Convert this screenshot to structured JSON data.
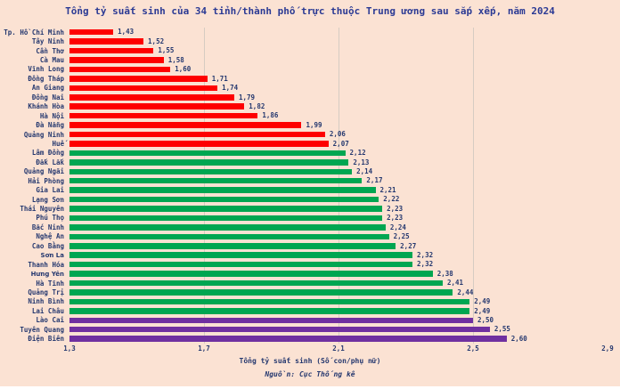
{
  "chart_data": {
    "type": "bar",
    "orientation": "horizontal",
    "title": "Tổng tỷ suất sinh của 34 tỉnh/thành phố trực thuộc Trung ương sau sắp xếp, năm 2024",
    "xlabel": "Tổng tỷ suất sinh (Số con/phụ nữ)",
    "source": "Nguồn: Cục Thống kê",
    "xlim": [
      1.3,
      2.9
    ],
    "xticks": [
      1.3,
      1.7,
      2.1,
      2.5,
      2.9
    ],
    "xtick_labels": [
      "1,3",
      "1,7",
      "2,1",
      "2,5",
      "2,9"
    ],
    "gridlines_at": [
      1.7,
      2.1,
      2.5
    ],
    "grid": "vertical, light gray, behind bars",
    "legend": "none",
    "colors": {
      "red": "#fe0000",
      "green": "#00a651",
      "purple": "#7030a0"
    },
    "background_color": "#fbe2d3",
    "text_color": "#25386f",
    "bars": [
      {
        "label": "Tp. Hồ Chí Minh",
        "value": 1.43,
        "display": "1,43",
        "color": "red"
      },
      {
        "label": "Tây Ninh",
        "value": 1.52,
        "display": "1,52",
        "color": "red"
      },
      {
        "label": "Cần Thơ",
        "value": 1.55,
        "display": "1,55",
        "color": "red"
      },
      {
        "label": "Cà Mau",
        "value": 1.58,
        "display": "1,58",
        "color": "red"
      },
      {
        "label": "Vĩnh Long",
        "value": 1.6,
        "display": "1,60",
        "color": "red"
      },
      {
        "label": "Đồng Tháp",
        "value": 1.71,
        "display": "1,71",
        "color": "red"
      },
      {
        "label": "An Giang",
        "value": 1.74,
        "display": "1,74",
        "color": "red"
      },
      {
        "label": "Đồng Nai",
        "value": 1.79,
        "display": "1,79",
        "color": "red"
      },
      {
        "label": "Khánh Hòa",
        "value": 1.82,
        "display": "1,82",
        "color": "red"
      },
      {
        "label": "Hà Nội",
        "value": 1.86,
        "display": "1,86",
        "color": "red"
      },
      {
        "label": "Đà Nẵng",
        "value": 1.99,
        "display": "1,99",
        "color": "red"
      },
      {
        "label": "Quảng Ninh",
        "value": 2.06,
        "display": "2,06",
        "color": "red"
      },
      {
        "label": "Huế",
        "value": 2.07,
        "display": "2,07",
        "color": "red"
      },
      {
        "label": "Lâm Đồng",
        "value": 2.12,
        "display": "2,12",
        "color": "green"
      },
      {
        "label": "Đắk Lắk",
        "value": 2.13,
        "display": "2,13",
        "color": "green"
      },
      {
        "label": "Quảng Ngãi",
        "value": 2.14,
        "display": "2,14",
        "color": "green"
      },
      {
        "label": "Hải Phòng",
        "value": 2.17,
        "display": "2,17",
        "color": "green"
      },
      {
        "label": "Gia Lai",
        "value": 2.21,
        "display": "2,21",
        "color": "green"
      },
      {
        "label": "Lạng Sơn",
        "value": 2.22,
        "display": "2,22",
        "color": "green"
      },
      {
        "label": "Thái Nguyên",
        "value": 2.23,
        "display": "2,23",
        "color": "green"
      },
      {
        "label": "Phú Thọ",
        "value": 2.23,
        "display": "2,23",
        "color": "green"
      },
      {
        "label": "Bắc Ninh",
        "value": 2.24,
        "display": "2,24",
        "color": "green"
      },
      {
        "label": "Nghệ An",
        "value": 2.25,
        "display": "2,25",
        "color": "green"
      },
      {
        "label": "Cao Bằng",
        "value": 2.27,
        "display": "2,27",
        "color": "green"
      },
      {
        "label": "Sơn La",
        "value": 2.32,
        "display": "2,32",
        "color": "green"
      },
      {
        "label": "Thanh Hóa",
        "value": 2.32,
        "display": "2,32",
        "color": "green"
      },
      {
        "label": "Hưng Yên",
        "value": 2.38,
        "display": "2,38",
        "color": "green"
      },
      {
        "label": "Hà Tĩnh",
        "value": 2.41,
        "display": "2,41",
        "color": "green"
      },
      {
        "label": "Quảng Trị",
        "value": 2.44,
        "display": "2,44",
        "color": "green"
      },
      {
        "label": "Ninh Bình",
        "value": 2.49,
        "display": "2,49",
        "color": "green"
      },
      {
        "label": "Lai Châu",
        "value": 2.49,
        "display": "2,49",
        "color": "green"
      },
      {
        "label": "Lào Cai",
        "value": 2.5,
        "display": "2,50",
        "color": "purple"
      },
      {
        "label": "Tuyên Quang",
        "value": 2.55,
        "display": "2,55",
        "color": "purple"
      },
      {
        "label": "Điện Biên",
        "value": 2.6,
        "display": "2,60",
        "color": "purple"
      }
    ]
  }
}
